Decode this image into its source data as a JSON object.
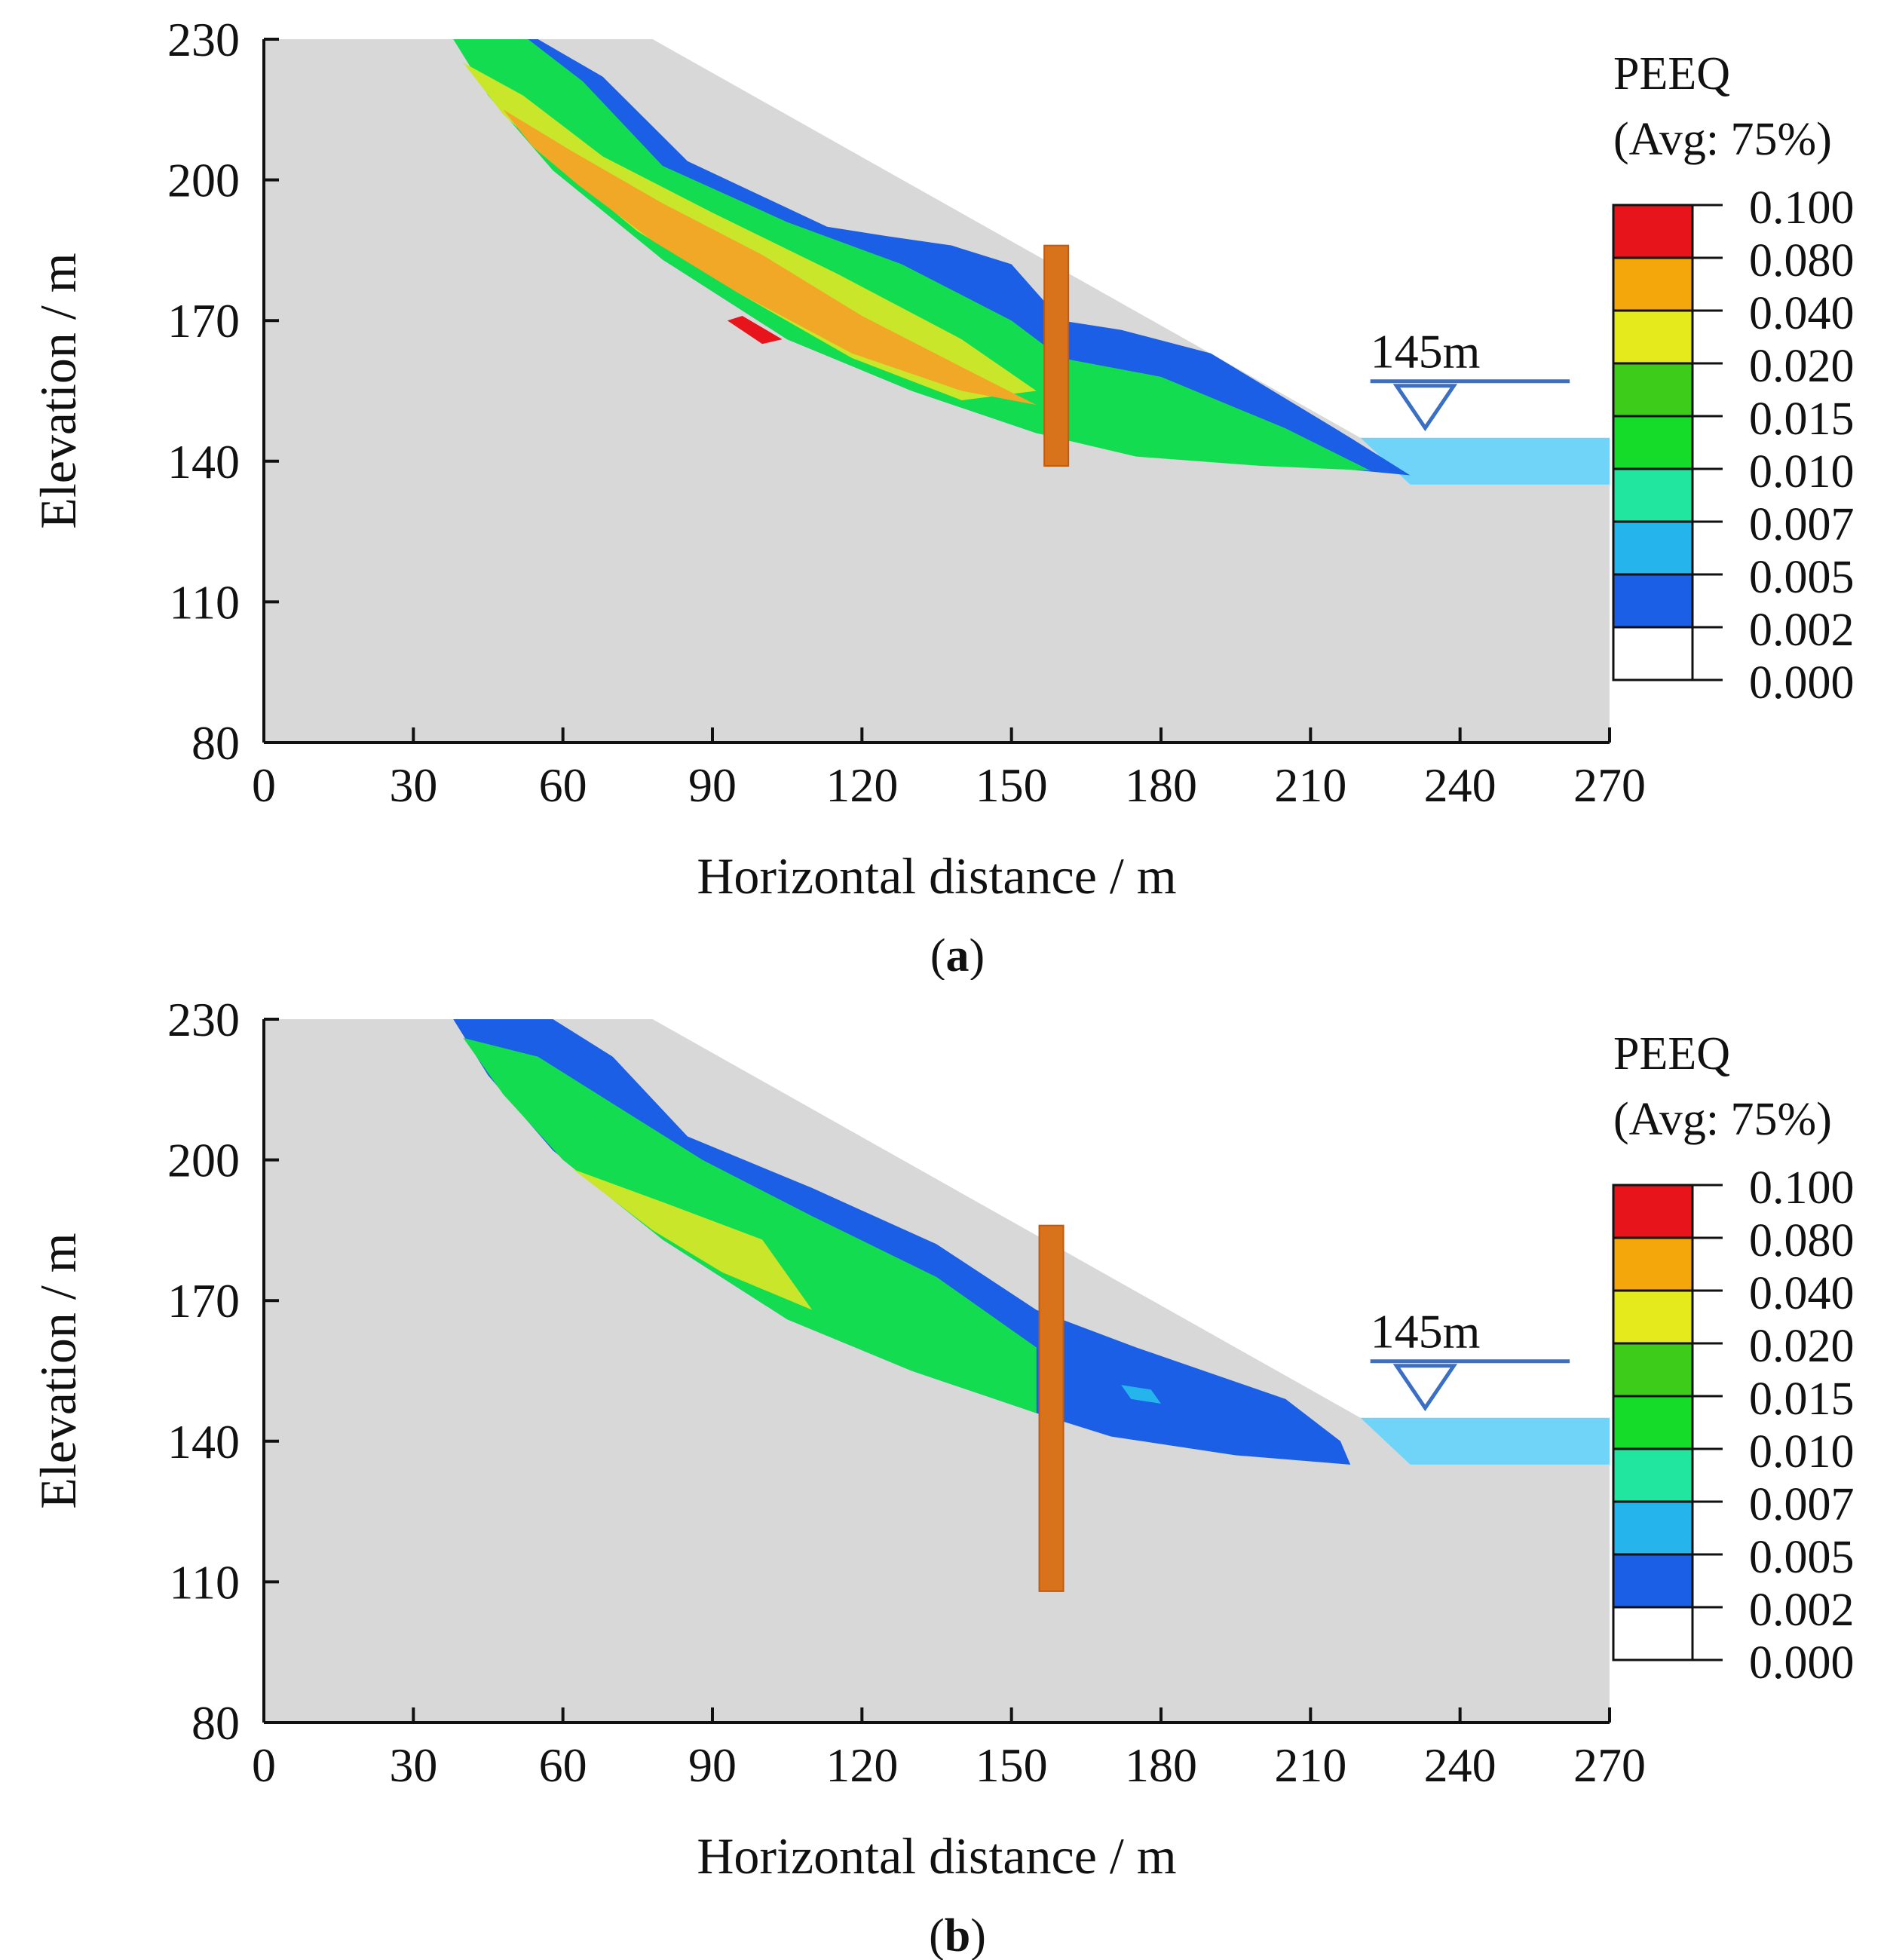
{
  "chart_data": [
    {
      "type": "contour",
      "panel_label": "a",
      "caption": {
        "open": "(",
        "letter": "a",
        "close": ")"
      },
      "xlabel": "Horizontal distance / m",
      "ylabel": "Elevation / m",
      "xlim": [
        0,
        270
      ],
      "ylim": [
        80,
        230
      ],
      "xticks": [
        0,
        30,
        60,
        90,
        120,
        150,
        180,
        210,
        240,
        270
      ],
      "yticks": [
        80,
        110,
        140,
        170,
        200,
        230
      ],
      "water_level": {
        "label": "145m",
        "elevation": 145
      },
      "slope_profile": [
        [
          0,
          230
        ],
        [
          78,
          230
        ],
        [
          220,
          145
        ],
        [
          230,
          135
        ],
        [
          270,
          135
        ]
      ],
      "pile": {
        "x": 159,
        "top": 186,
        "bottom": 139
      },
      "contour_bands": [
        {
          "level": "0.002",
          "polygon": [
            [
              55,
              230
            ],
            [
              68,
              222
            ],
            [
              85,
              204
            ],
            [
              113,
              190
            ],
            [
              125,
              188
            ],
            [
              138,
              186
            ],
            [
              150,
              182
            ],
            [
              160,
              170
            ],
            [
              172,
              168
            ],
            [
              190,
              163
            ],
            [
              218,
              145
            ],
            [
              230,
              137
            ],
            [
              200,
              140
            ],
            [
              175,
              142
            ],
            [
              155,
              146
            ],
            [
              130,
              155
            ],
            [
              105,
              166
            ],
            [
              80,
              183
            ],
            [
              60,
              201
            ],
            [
              40,
              230
            ]
          ]
        },
        {
          "level": "0.010",
          "polygon": [
            [
              38,
              230
            ],
            [
              53,
              230
            ],
            [
              64,
              221
            ],
            [
              80,
              203
            ],
            [
              105,
              191
            ],
            [
              128,
              182
            ],
            [
              150,
              170
            ],
            [
              160,
              162
            ],
            [
              180,
              158
            ],
            [
              205,
              147
            ],
            [
              222,
              138
            ],
            [
              200,
              139
            ],
            [
              175,
              141
            ],
            [
              155,
              146
            ],
            [
              130,
              155
            ],
            [
              105,
              166
            ],
            [
              80,
              183
            ],
            [
              58,
              202
            ],
            [
              45,
              218
            ]
          ]
        },
        {
          "level": "0.020",
          "polygon": [
            [
              40,
              225
            ],
            [
              52,
              218
            ],
            [
              68,
              205
            ],
            [
              90,
              193
            ],
            [
              115,
              180
            ],
            [
              140,
              166
            ],
            [
              155,
              155
            ],
            [
              140,
              153
            ],
            [
              118,
              162
            ],
            [
              95,
              176
            ],
            [
              75,
              189
            ],
            [
              58,
              204
            ],
            [
              48,
              214
            ]
          ]
        },
        {
          "level": "0.040",
          "polygon": [
            [
              48,
              215
            ],
            [
              62,
              206
            ],
            [
              80,
              195
            ],
            [
              100,
              184
            ],
            [
              120,
              171
            ],
            [
              142,
              159
            ],
            [
              155,
              152
            ],
            [
              140,
              155
            ],
            [
              118,
              163
            ],
            [
              95,
              176
            ],
            [
              78,
              187
            ],
            [
              63,
              199
            ],
            [
              54,
              207
            ]
          ]
        },
        {
          "level": "0.080",
          "polygon": [
            [
              93,
              170
            ],
            [
              100,
              165
            ],
            [
              104,
              166
            ],
            [
              96,
              171
            ]
          ]
        }
      ]
    },
    {
      "type": "contour",
      "panel_label": "b",
      "caption": {
        "open": "(",
        "letter": "b",
        "close": ")"
      },
      "xlabel": "Horizontal distance / m",
      "ylabel": "Elevation / m",
      "xlim": [
        0,
        270
      ],
      "ylim": [
        80,
        230
      ],
      "xticks": [
        0,
        30,
        60,
        90,
        120,
        150,
        180,
        210,
        240,
        270
      ],
      "yticks": [
        80,
        110,
        140,
        170,
        200,
        230
      ],
      "water_level": {
        "label": "145m",
        "elevation": 145
      },
      "slope_profile": [
        [
          0,
          230
        ],
        [
          78,
          230
        ],
        [
          220,
          145
        ],
        [
          230,
          135
        ],
        [
          270,
          135
        ]
      ],
      "pile": {
        "x": 158,
        "top": 186,
        "bottom": 108
      },
      "contour_bands": [
        {
          "level": "0.002",
          "polygon": [
            [
              38,
              230
            ],
            [
              58,
              230
            ],
            [
              70,
              222
            ],
            [
              85,
              205
            ],
            [
              110,
              194
            ],
            [
              135,
              182
            ],
            [
              155,
              168
            ],
            [
              175,
              160
            ],
            [
              205,
              149
            ],
            [
              216,
              140
            ],
            [
              218,
              135
            ],
            [
              195,
              137
            ],
            [
              170,
              141
            ],
            [
              155,
              146
            ],
            [
              130,
              155
            ],
            [
              105,
              166
            ],
            [
              80,
              183
            ],
            [
              58,
              202
            ],
            [
              45,
              218
            ]
          ]
        },
        {
          "level": "0.010",
          "polygon": [
            [
              40,
              226
            ],
            [
              55,
              222
            ],
            [
              70,
              212
            ],
            [
              88,
              200
            ],
            [
              110,
              188
            ],
            [
              135,
              175
            ],
            [
              155,
              160
            ],
            [
              155,
              146
            ],
            [
              130,
              155
            ],
            [
              105,
              166
            ],
            [
              80,
              183
            ],
            [
              60,
              200
            ],
            [
              48,
              214
            ]
          ]
        },
        {
          "level": "0.020",
          "polygon": [
            [
              62,
              198
            ],
            [
              80,
              191
            ],
            [
              100,
              183
            ],
            [
              110,
              168
            ],
            [
              92,
              176
            ],
            [
              78,
              185
            ]
          ]
        },
        {
          "level": "0.005",
          "polygon": [
            [
              172,
              152
            ],
            [
              178,
              151
            ],
            [
              180,
              148
            ],
            [
              174,
              149
            ]
          ]
        }
      ]
    }
  ],
  "legend": {
    "title": "PEEQ",
    "subtitle": "(Avg: 75%)",
    "levels": [
      "0.100",
      "0.080",
      "0.040",
      "0.020",
      "0.015",
      "0.010",
      "0.007",
      "0.005",
      "0.002",
      "0.000"
    ],
    "colors": [
      "#e8141c",
      "#f4a70a",
      "#e4ea1c",
      "#3ecc1a",
      "#14dc28",
      "#20e6a0",
      "#25b4ec",
      "#1a5fe6",
      "#ffffff"
    ]
  },
  "colors": {
    "soil": "#d8d8d8",
    "water": "#6fd4f8",
    "water_line": "#3a6fc4",
    "pile": "#d8731c",
    "pile_edge": "#c05a0e",
    "axis": "#111111",
    "band_0.002": "#1a5fe6",
    "band_0.005": "#25b4ec",
    "band_0.010": "#14dc50",
    "band_0.020": "#c9e62a",
    "band_0.040": "#f1a827",
    "band_0.080": "#e8141c"
  }
}
